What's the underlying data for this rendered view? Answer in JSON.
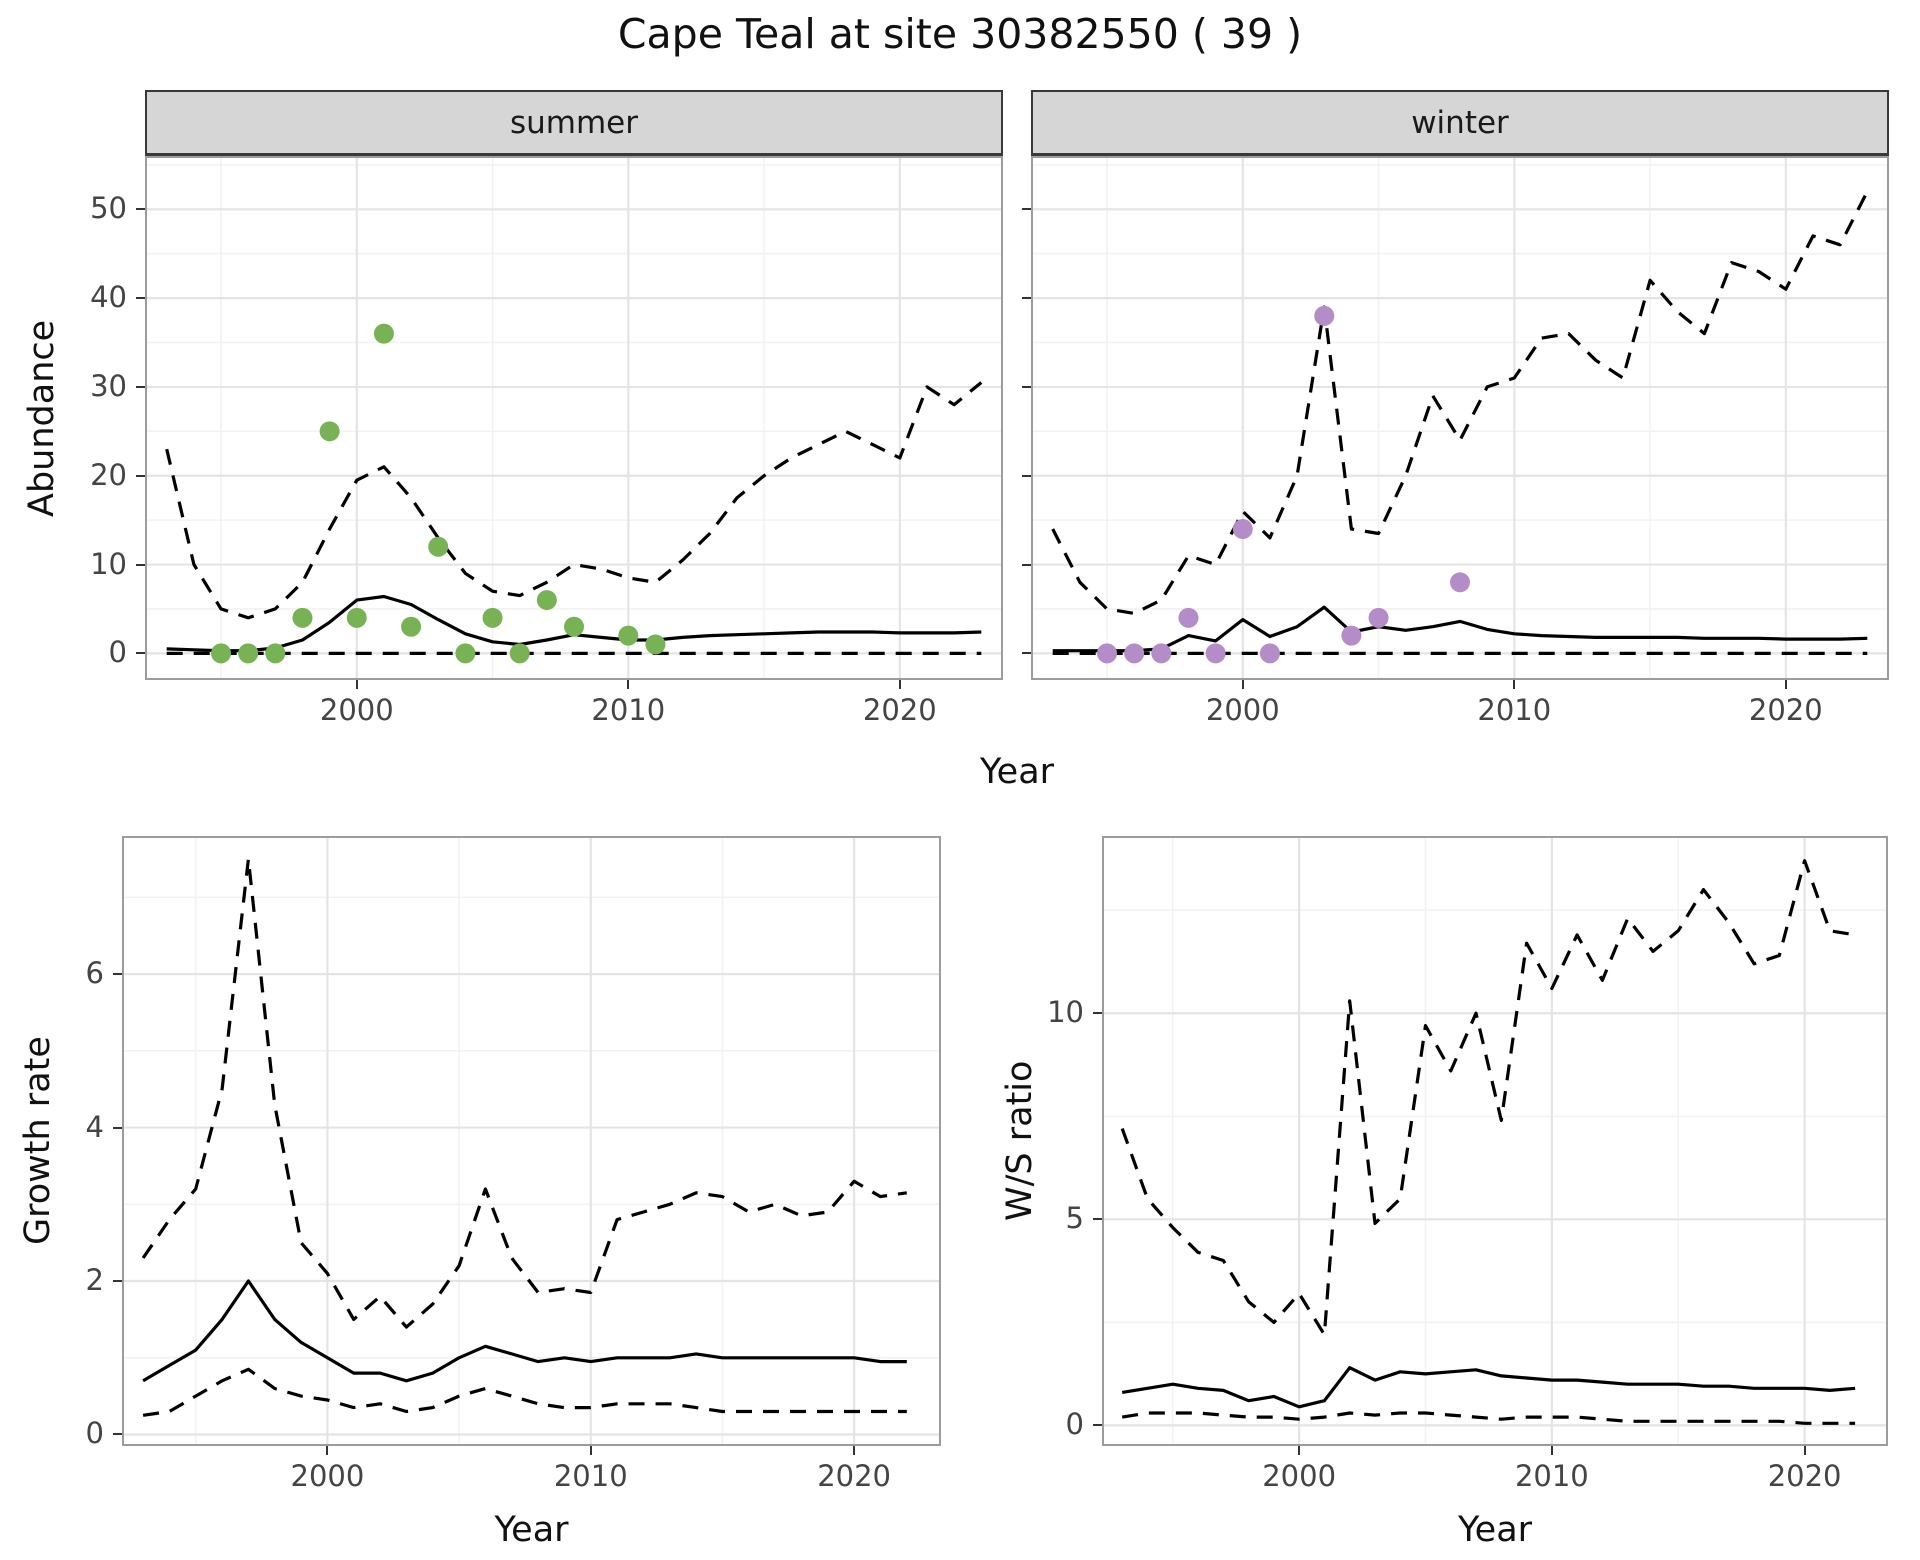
{
  "page": {
    "title": "Cape Teal at site 30382550 ( 39 )"
  },
  "colors": {
    "summer_points": "#77b254",
    "winter_points": "#b48cc8",
    "line": "#000000",
    "grid_major": "#e4e4e4",
    "grid_minor": "#f2f2f2",
    "strip_bg": "#d6d6d6",
    "panel_border": "#9c9c9c"
  },
  "chart_data": [
    {
      "id": "abundance_summer",
      "type": "line",
      "facet_label": "summer",
      "ylabel": "Abundance",
      "xlabel": "Year",
      "xlim": [
        1992.2,
        2023.8
      ],
      "ylim": [
        -3,
        56
      ],
      "xticks": [
        2000,
        2010,
        2020
      ],
      "yticks": [
        0,
        10,
        20,
        30,
        40,
        50
      ],
      "xminor": [
        1995,
        2005,
        2015
      ],
      "yminor": [
        5,
        15,
        25,
        35,
        45,
        55
      ],
      "series": [
        {
          "name": "mean",
          "style": "solid",
          "x": [
            1993,
            1994,
            1995,
            1996,
            1997,
            1998,
            1999,
            2000,
            2001,
            2002,
            2003,
            2004,
            2005,
            2006,
            2007,
            2008,
            2009,
            2010,
            2011,
            2012,
            2013,
            2014,
            2015,
            2016,
            2017,
            2018,
            2019,
            2020,
            2021,
            2022,
            2023
          ],
          "y": [
            0.5,
            0.4,
            0.3,
            0.3,
            0.6,
            1.5,
            3.5,
            6.0,
            6.4,
            5.5,
            3.8,
            2.2,
            1.3,
            1.0,
            1.5,
            2.1,
            1.8,
            1.5,
            1.5,
            1.8,
            2.0,
            2.1,
            2.2,
            2.3,
            2.4,
            2.4,
            2.4,
            2.3,
            2.3,
            2.3,
            2.4
          ]
        },
        {
          "name": "upper_ci",
          "style": "dashed",
          "x": [
            1993,
            1994,
            1995,
            1996,
            1997,
            1998,
            1999,
            2000,
            2001,
            2002,
            2003,
            2004,
            2005,
            2006,
            2007,
            2008,
            2009,
            2010,
            2011,
            2012,
            2013,
            2014,
            2015,
            2016,
            2017,
            2018,
            2019,
            2020,
            2021,
            2022,
            2023
          ],
          "y": [
            23,
            10,
            5,
            4,
            5,
            8,
            14,
            19.5,
            21,
            17.5,
            13,
            9,
            7,
            6.5,
            8,
            10,
            9.5,
            8.5,
            8,
            10.5,
            13.5,
            17.5,
            20,
            22,
            23.5,
            25,
            23.5,
            22,
            30,
            28,
            30.5
          ]
        },
        {
          "name": "lower_ci",
          "style": "dashed",
          "x": [
            1993,
            1994,
            1995,
            1996,
            1997,
            1998,
            1999,
            2000,
            2001,
            2002,
            2003,
            2004,
            2005,
            2006,
            2007,
            2008,
            2009,
            2010,
            2011,
            2012,
            2013,
            2014,
            2015,
            2016,
            2017,
            2018,
            2019,
            2020,
            2021,
            2022,
            2023
          ],
          "y": [
            0,
            0,
            0,
            0,
            0,
            0,
            0,
            0,
            0,
            0,
            0,
            0,
            0,
            0,
            0,
            0,
            0,
            0,
            0,
            0,
            0,
            0,
            0,
            0,
            0,
            0,
            0,
            0,
            0,
            0,
            0
          ]
        }
      ],
      "points": {
        "name": "observed_counts_summer",
        "color_key": "summer_points",
        "x": [
          1995,
          1996,
          1997,
          1998,
          1999,
          2000,
          2001,
          2002,
          2003,
          2004,
          2005,
          2006,
          2007,
          2008,
          2010,
          2011
        ],
        "y": [
          0,
          0,
          0,
          4,
          25,
          4,
          36,
          3,
          12,
          0,
          4,
          0,
          6,
          3,
          2,
          1
        ]
      }
    },
    {
      "id": "abundance_winter",
      "type": "line",
      "facet_label": "winter",
      "ylabel": "Abundance",
      "xlabel": "Year",
      "xlim": [
        1992.2,
        2023.8
      ],
      "ylim": [
        -3,
        56
      ],
      "xticks": [
        2000,
        2010,
        2020
      ],
      "yticks": [
        0,
        10,
        20,
        30,
        40,
        50
      ],
      "xminor": [
        1995,
        2005,
        2015
      ],
      "yminor": [
        5,
        15,
        25,
        35,
        45,
        55
      ],
      "series": [
        {
          "name": "mean",
          "style": "solid",
          "x": [
            1993,
            1994,
            1995,
            1996,
            1997,
            1998,
            1999,
            2000,
            2001,
            2002,
            2003,
            2004,
            2005,
            2006,
            2007,
            2008,
            2009,
            2010,
            2011,
            2012,
            2013,
            2014,
            2015,
            2016,
            2017,
            2018,
            2019,
            2020,
            2021,
            2022,
            2023
          ],
          "y": [
            0.3,
            0.3,
            0.3,
            0.3,
            0.5,
            2.0,
            1.4,
            3.8,
            1.9,
            3.0,
            5.2,
            2.4,
            3.0,
            2.6,
            3.0,
            3.6,
            2.7,
            2.2,
            2.0,
            1.9,
            1.8,
            1.8,
            1.8,
            1.8,
            1.7,
            1.7,
            1.7,
            1.6,
            1.6,
            1.6,
            1.7
          ]
        },
        {
          "name": "upper_ci",
          "style": "dashed",
          "x": [
            1993,
            1994,
            1995,
            1996,
            1997,
            1998,
            1999,
            2000,
            2001,
            2002,
            2003,
            2004,
            2005,
            2006,
            2007,
            2008,
            2009,
            2010,
            2011,
            2012,
            2013,
            2014,
            2015,
            2016,
            2017,
            2018,
            2019,
            2020,
            2021,
            2022,
            2023
          ],
          "y": [
            14,
            8,
            5,
            4.5,
            6,
            11,
            10,
            16,
            13,
            20,
            39,
            14,
            13.5,
            20,
            29,
            24,
            30,
            31,
            35.5,
            36,
            33,
            31,
            42,
            38.5,
            36,
            44,
            43,
            41,
            47,
            46,
            52
          ]
        },
        {
          "name": "lower_ci",
          "style": "dashed",
          "x": [
            1993,
            1994,
            1995,
            1996,
            1997,
            1998,
            1999,
            2000,
            2001,
            2002,
            2003,
            2004,
            2005,
            2006,
            2007,
            2008,
            2009,
            2010,
            2011,
            2012,
            2013,
            2014,
            2015,
            2016,
            2017,
            2018,
            2019,
            2020,
            2021,
            2022,
            2023
          ],
          "y": [
            0,
            0,
            0,
            0,
            0,
            0,
            0,
            0,
            0,
            0,
            0,
            0,
            0,
            0,
            0,
            0,
            0,
            0,
            0,
            0,
            0,
            0,
            0,
            0,
            0,
            0,
            0,
            0,
            0,
            0,
            0
          ]
        }
      ],
      "points": {
        "name": "observed_counts_winter",
        "color_key": "winter_points",
        "x": [
          1995,
          1996,
          1997,
          1998,
          1999,
          2000,
          2001,
          2003,
          2004,
          2005,
          2008
        ],
        "y": [
          0,
          0,
          0,
          4,
          0,
          14,
          0,
          38,
          2,
          4,
          8
        ]
      }
    },
    {
      "id": "growth_rate",
      "type": "line",
      "ylabel": "Growth rate",
      "xlabel": "Year",
      "xlim": [
        1992.2,
        2023.3
      ],
      "ylim": [
        -0.15,
        7.8
      ],
      "xticks": [
        2000,
        2010,
        2020
      ],
      "yticks": [
        0,
        2,
        4,
        6
      ],
      "xminor": [
        1995,
        2005,
        2015
      ],
      "yminor": [
        1,
        3,
        5,
        7
      ],
      "series": [
        {
          "name": "mean",
          "style": "solid",
          "x": [
            1993,
            1994,
            1995,
            1996,
            1997,
            1998,
            1999,
            2000,
            2001,
            2002,
            2003,
            2004,
            2005,
            2006,
            2007,
            2008,
            2009,
            2010,
            2011,
            2012,
            2013,
            2014,
            2015,
            2016,
            2017,
            2018,
            2019,
            2020,
            2021,
            2022
          ],
          "y": [
            0.7,
            0.9,
            1.1,
            1.5,
            2.0,
            1.5,
            1.2,
            1.0,
            0.8,
            0.8,
            0.7,
            0.8,
            1.0,
            1.15,
            1.05,
            0.95,
            1.0,
            0.95,
            1.0,
            1.0,
            1.0,
            1.05,
            1.0,
            1.0,
            1.0,
            1.0,
            1.0,
            1.0,
            0.95,
            0.95
          ]
        },
        {
          "name": "upper_ci",
          "style": "dashed",
          "x": [
            1993,
            1994,
            1995,
            1996,
            1997,
            1998,
            1999,
            2000,
            2001,
            2002,
            2003,
            2004,
            2005,
            2006,
            2007,
            2008,
            2009,
            2010,
            2011,
            2012,
            2013,
            2014,
            2015,
            2016,
            2017,
            2018,
            2019,
            2020,
            2021,
            2022
          ],
          "y": [
            2.3,
            2.8,
            3.2,
            4.5,
            7.5,
            4.3,
            2.5,
            2.1,
            1.5,
            1.8,
            1.4,
            1.7,
            2.2,
            3.2,
            2.3,
            1.85,
            1.9,
            1.85,
            2.8,
            2.9,
            3.0,
            3.15,
            3.1,
            2.9,
            3.0,
            2.85,
            2.9,
            3.3,
            3.1,
            3.15
          ]
        },
        {
          "name": "lower_ci",
          "style": "dashed",
          "x": [
            1993,
            1994,
            1995,
            1996,
            1997,
            1998,
            1999,
            2000,
            2001,
            2002,
            2003,
            2004,
            2005,
            2006,
            2007,
            2008,
            2009,
            2010,
            2011,
            2012,
            2013,
            2014,
            2015,
            2016,
            2017,
            2018,
            2019,
            2020,
            2021,
            2022
          ],
          "y": [
            0.25,
            0.3,
            0.5,
            0.7,
            0.85,
            0.6,
            0.5,
            0.45,
            0.35,
            0.4,
            0.3,
            0.35,
            0.5,
            0.6,
            0.5,
            0.4,
            0.35,
            0.35,
            0.4,
            0.4,
            0.4,
            0.35,
            0.3,
            0.3,
            0.3,
            0.3,
            0.3,
            0.3,
            0.3,
            0.3
          ]
        }
      ]
    },
    {
      "id": "ws_ratio",
      "type": "line",
      "ylabel": "W/S ratio",
      "xlabel": "Year",
      "xlim": [
        1992.2,
        2023.3
      ],
      "ylim": [
        -0.5,
        14.3
      ],
      "xticks": [
        2000,
        2010,
        2020
      ],
      "yticks": [
        0,
        5,
        10
      ],
      "xminor": [
        1995,
        2005,
        2015
      ],
      "yminor": [
        2.5,
        7.5,
        12.5
      ],
      "series": [
        {
          "name": "mean",
          "style": "solid",
          "x": [
            1993,
            1994,
            1995,
            1996,
            1997,
            1998,
            1999,
            2000,
            2001,
            2002,
            2003,
            2004,
            2005,
            2006,
            2007,
            2008,
            2009,
            2010,
            2011,
            2012,
            2013,
            2014,
            2015,
            2016,
            2017,
            2018,
            2019,
            2020,
            2021,
            2022
          ],
          "y": [
            0.8,
            0.9,
            1.0,
            0.9,
            0.85,
            0.6,
            0.7,
            0.45,
            0.6,
            1.4,
            1.1,
            1.3,
            1.25,
            1.3,
            1.35,
            1.2,
            1.15,
            1.1,
            1.1,
            1.05,
            1.0,
            1.0,
            1.0,
            0.95,
            0.95,
            0.9,
            0.9,
            0.9,
            0.85,
            0.9
          ]
        },
        {
          "name": "upper_ci",
          "style": "dashed",
          "x": [
            1993,
            1994,
            1995,
            1996,
            1997,
            1998,
            1999,
            2000,
            2001,
            2002,
            2003,
            2004,
            2005,
            2006,
            2007,
            2008,
            2009,
            2010,
            2011,
            2012,
            2013,
            2014,
            2015,
            2016,
            2017,
            2018,
            2019,
            2020,
            2021,
            2022
          ],
          "y": [
            7.2,
            5.5,
            4.8,
            4.2,
            4.0,
            3.0,
            2.5,
            3.2,
            2.2,
            10.3,
            4.9,
            5.5,
            9.7,
            8.6,
            10.0,
            7.4,
            11.7,
            10.6,
            11.9,
            10.8,
            12.3,
            11.5,
            12.0,
            13.0,
            12.2,
            11.2,
            11.4,
            13.7,
            12.0,
            11.9
          ]
        },
        {
          "name": "lower_ci",
          "style": "dashed",
          "x": [
            1993,
            1994,
            1995,
            1996,
            1997,
            1998,
            1999,
            2000,
            2001,
            2002,
            2003,
            2004,
            2005,
            2006,
            2007,
            2008,
            2009,
            2010,
            2011,
            2012,
            2013,
            2014,
            2015,
            2016,
            2017,
            2018,
            2019,
            2020,
            2021,
            2022
          ],
          "y": [
            0.2,
            0.3,
            0.3,
            0.3,
            0.25,
            0.2,
            0.2,
            0.15,
            0.2,
            0.3,
            0.25,
            0.3,
            0.3,
            0.25,
            0.2,
            0.15,
            0.2,
            0.2,
            0.2,
            0.15,
            0.1,
            0.1,
            0.1,
            0.1,
            0.1,
            0.1,
            0.1,
            0.05,
            0.05,
            0.05
          ]
        }
      ]
    }
  ]
}
